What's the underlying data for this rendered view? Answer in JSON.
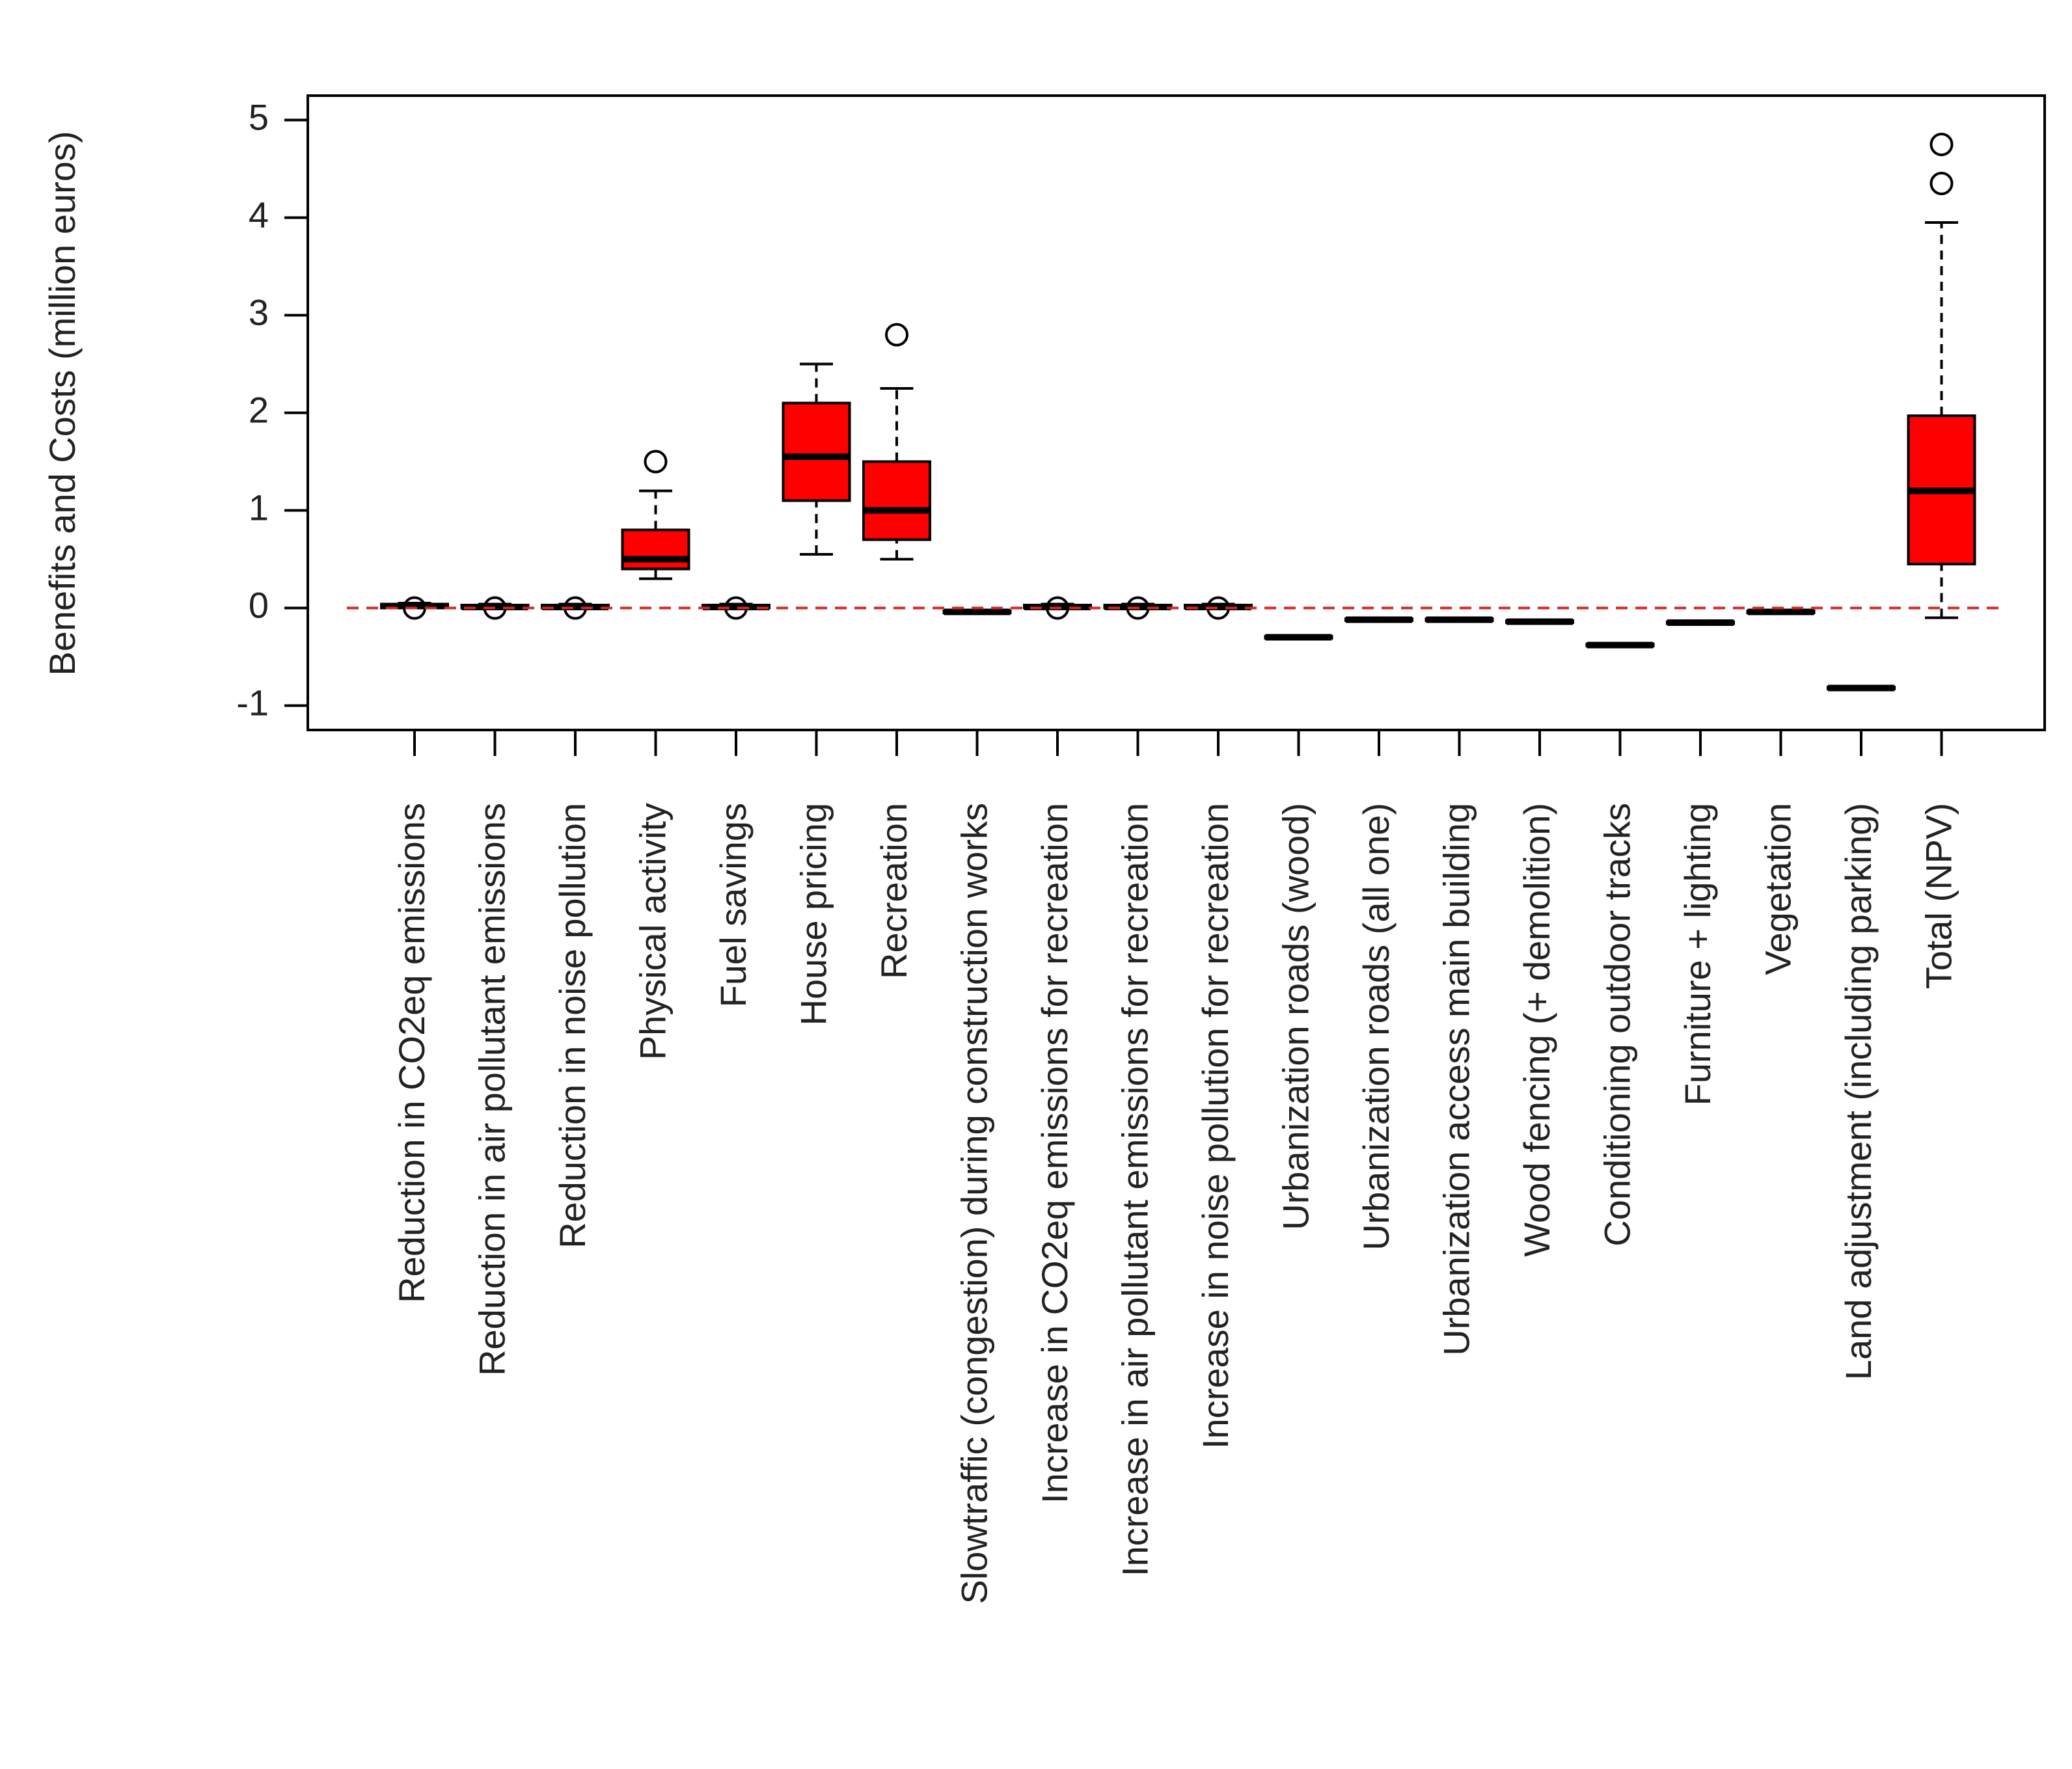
{
  "chart_data": {
    "type": "box",
    "ylabel": "Benefits and Costs (million euros)",
    "categories": [
      "Reduction in CO2eq emissions",
      "Reduction in air pollutant emissions",
      "Reduction in noise pollution",
      "Physical activity",
      "Fuel savings",
      "House pricing",
      "Recreation",
      "Slowtraffic (congestion) during construction works",
      "Increase in CO2eq emissions for recreation",
      "Increase in air pollutant emissions for recreation",
      "Increase in noise pollution for recreation",
      "Urbanization roads (wood)",
      "Urbanization roads (all one)",
      "Urbanization access main building",
      "Wood fencing (+ demolition)",
      "Conditioning outdoor tracks",
      "Furniture + lighting",
      "Vegetation",
      "Land adjustment (including parking)",
      "Total (NPV)"
    ],
    "whislo": [
      0,
      0,
      0,
      0.3,
      0,
      0.55,
      0.5,
      -0.06,
      0,
      0,
      0,
      -0.32,
      -0.14,
      -0.14,
      -0.16,
      -0.4,
      -0.17,
      -0.06,
      -0.84,
      -0.1
    ],
    "q1": [
      0,
      0,
      0,
      0.4,
      0,
      1.1,
      0.7,
      -0.05,
      0,
      0,
      0,
      -0.31,
      -0.13,
      -0.13,
      -0.15,
      -0.39,
      -0.16,
      -0.05,
      -0.83,
      0.45
    ],
    "med": [
      0.02,
      0.01,
      0.01,
      0.5,
      0.01,
      1.55,
      1.0,
      -0.04,
      0.01,
      0.01,
      0.01,
      -0.3,
      -0.12,
      -0.12,
      -0.14,
      -0.38,
      -0.15,
      -0.04,
      -0.82,
      1.2
    ],
    "q3": [
      0.04,
      0.03,
      0.03,
      0.8,
      0.03,
      2.1,
      1.5,
      -0.03,
      0.03,
      0.03,
      0.03,
      -0.29,
      -0.11,
      -0.11,
      -0.13,
      -0.37,
      -0.14,
      -0.03,
      -0.81,
      1.97
    ],
    "whishi": [
      0.05,
      0.04,
      0.04,
      1.2,
      0.04,
      2.5,
      2.25,
      -0.02,
      0.04,
      0.04,
      0.04,
      -0.28,
      -0.1,
      -0.1,
      -0.12,
      -0.36,
      -0.13,
      -0.02,
      -0.8,
      3.95
    ],
    "outliers": [
      [
        0
      ],
      [
        0
      ],
      [
        0
      ],
      [
        1.5
      ],
      [
        0
      ],
      [],
      [
        2.8
      ],
      [],
      [
        0
      ],
      [
        0
      ],
      [
        0
      ],
      [],
      [],
      [],
      [],
      [],
      [],
      [],
      [],
      [
        4.35,
        4.75
      ]
    ],
    "color": "#ff0000",
    "hline": 0,
    "hline_color": "#d62728",
    "ylim": [
      -1.25,
      5.25
    ],
    "yticks": [
      -1,
      0,
      1,
      2,
      3,
      4,
      5
    ]
  }
}
